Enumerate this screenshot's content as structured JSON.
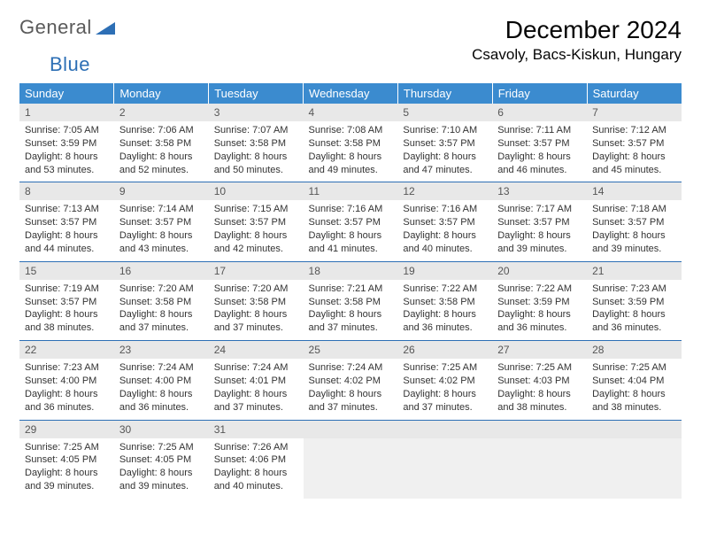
{
  "logo": {
    "text1": "General",
    "text2": "Blue"
  },
  "title": "December 2024",
  "location": "Csavoly, Bacs-Kiskun, Hungary",
  "colors": {
    "header_bg": "#3b8bcf",
    "header_fg": "#ffffff",
    "daynum_bg": "#e8e8e8",
    "border": "#2d6fb5",
    "text": "#333333"
  },
  "weekdays": [
    "Sunday",
    "Monday",
    "Tuesday",
    "Wednesday",
    "Thursday",
    "Friday",
    "Saturday"
  ],
  "weeks": [
    [
      {
        "n": "1",
        "sr": "7:05 AM",
        "ss": "3:59 PM",
        "dl": "8 hours and 53 minutes."
      },
      {
        "n": "2",
        "sr": "7:06 AM",
        "ss": "3:58 PM",
        "dl": "8 hours and 52 minutes."
      },
      {
        "n": "3",
        "sr": "7:07 AM",
        "ss": "3:58 PM",
        "dl": "8 hours and 50 minutes."
      },
      {
        "n": "4",
        "sr": "7:08 AM",
        "ss": "3:58 PM",
        "dl": "8 hours and 49 minutes."
      },
      {
        "n": "5",
        "sr": "7:10 AM",
        "ss": "3:57 PM",
        "dl": "8 hours and 47 minutes."
      },
      {
        "n": "6",
        "sr": "7:11 AM",
        "ss": "3:57 PM",
        "dl": "8 hours and 46 minutes."
      },
      {
        "n": "7",
        "sr": "7:12 AM",
        "ss": "3:57 PM",
        "dl": "8 hours and 45 minutes."
      }
    ],
    [
      {
        "n": "8",
        "sr": "7:13 AM",
        "ss": "3:57 PM",
        "dl": "8 hours and 44 minutes."
      },
      {
        "n": "9",
        "sr": "7:14 AM",
        "ss": "3:57 PM",
        "dl": "8 hours and 43 minutes."
      },
      {
        "n": "10",
        "sr": "7:15 AM",
        "ss": "3:57 PM",
        "dl": "8 hours and 42 minutes."
      },
      {
        "n": "11",
        "sr": "7:16 AM",
        "ss": "3:57 PM",
        "dl": "8 hours and 41 minutes."
      },
      {
        "n": "12",
        "sr": "7:16 AM",
        "ss": "3:57 PM",
        "dl": "8 hours and 40 minutes."
      },
      {
        "n": "13",
        "sr": "7:17 AM",
        "ss": "3:57 PM",
        "dl": "8 hours and 39 minutes."
      },
      {
        "n": "14",
        "sr": "7:18 AM",
        "ss": "3:57 PM",
        "dl": "8 hours and 39 minutes."
      }
    ],
    [
      {
        "n": "15",
        "sr": "7:19 AM",
        "ss": "3:57 PM",
        "dl": "8 hours and 38 minutes."
      },
      {
        "n": "16",
        "sr": "7:20 AM",
        "ss": "3:58 PM",
        "dl": "8 hours and 37 minutes."
      },
      {
        "n": "17",
        "sr": "7:20 AM",
        "ss": "3:58 PM",
        "dl": "8 hours and 37 minutes."
      },
      {
        "n": "18",
        "sr": "7:21 AM",
        "ss": "3:58 PM",
        "dl": "8 hours and 37 minutes."
      },
      {
        "n": "19",
        "sr": "7:22 AM",
        "ss": "3:58 PM",
        "dl": "8 hours and 36 minutes."
      },
      {
        "n": "20",
        "sr": "7:22 AM",
        "ss": "3:59 PM",
        "dl": "8 hours and 36 minutes."
      },
      {
        "n": "21",
        "sr": "7:23 AM",
        "ss": "3:59 PM",
        "dl": "8 hours and 36 minutes."
      }
    ],
    [
      {
        "n": "22",
        "sr": "7:23 AM",
        "ss": "4:00 PM",
        "dl": "8 hours and 36 minutes."
      },
      {
        "n": "23",
        "sr": "7:24 AM",
        "ss": "4:00 PM",
        "dl": "8 hours and 36 minutes."
      },
      {
        "n": "24",
        "sr": "7:24 AM",
        "ss": "4:01 PM",
        "dl": "8 hours and 37 minutes."
      },
      {
        "n": "25",
        "sr": "7:24 AM",
        "ss": "4:02 PM",
        "dl": "8 hours and 37 minutes."
      },
      {
        "n": "26",
        "sr": "7:25 AM",
        "ss": "4:02 PM",
        "dl": "8 hours and 37 minutes."
      },
      {
        "n": "27",
        "sr": "7:25 AM",
        "ss": "4:03 PM",
        "dl": "8 hours and 38 minutes."
      },
      {
        "n": "28",
        "sr": "7:25 AM",
        "ss": "4:04 PM",
        "dl": "8 hours and 38 minutes."
      }
    ],
    [
      {
        "n": "29",
        "sr": "7:25 AM",
        "ss": "4:05 PM",
        "dl": "8 hours and 39 minutes."
      },
      {
        "n": "30",
        "sr": "7:25 AM",
        "ss": "4:05 PM",
        "dl": "8 hours and 39 minutes."
      },
      {
        "n": "31",
        "sr": "7:26 AM",
        "ss": "4:06 PM",
        "dl": "8 hours and 40 minutes."
      },
      null,
      null,
      null,
      null
    ]
  ],
  "labels": {
    "sunrise": "Sunrise:",
    "sunset": "Sunset:",
    "daylight": "Daylight:"
  }
}
